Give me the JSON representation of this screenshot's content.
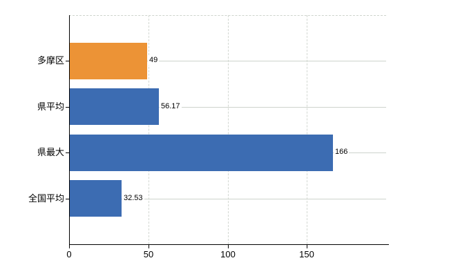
{
  "chart_data": {
    "type": "bar",
    "orientation": "horizontal",
    "categories": [
      "多摩区",
      "県平均",
      "県最大",
      "全国平均"
    ],
    "values": [
      49,
      56.17,
      166,
      32.53
    ],
    "value_labels": [
      "49",
      "56.17",
      "166",
      "32.53"
    ],
    "bar_colors": [
      "#EC9336",
      "#3C6CB2",
      "#3C6CB2",
      "#3C6CB2"
    ],
    "x_ticks": [
      0,
      50,
      100,
      150
    ],
    "x_tick_labels": [
      "0",
      "50",
      "100",
      "150"
    ],
    "xlim": [
      0,
      200
    ],
    "grid": {
      "vertical_style": "dashed",
      "horizontal_style": "solid",
      "color": "#CDD3CC"
    },
    "axis_color": "#000000",
    "text_color": "#000000",
    "legend": null
  }
}
